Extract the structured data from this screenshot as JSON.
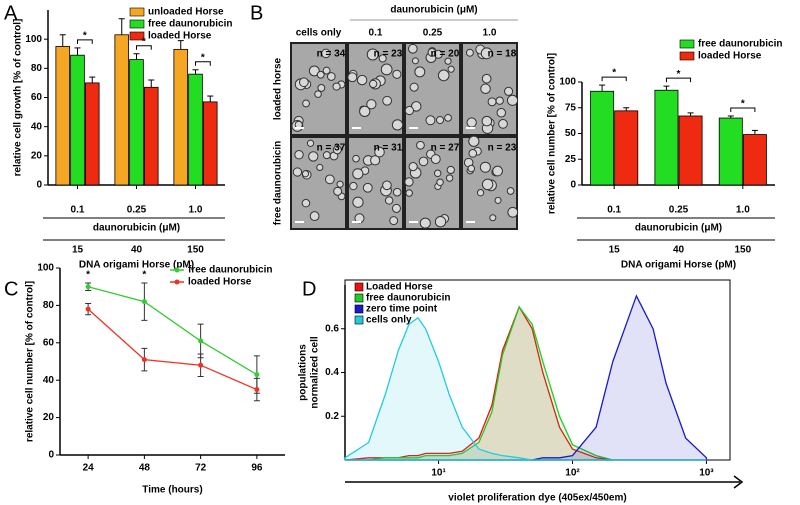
{
  "panels": [
    "A",
    "B",
    "C",
    "D"
  ],
  "micrographs": {
    "title": "daunorubicin (μM)",
    "columns": [
      "cells only",
      "0.1",
      "0.25",
      "1.0"
    ],
    "rows": [
      "loaded horse",
      "free daunorubicin"
    ],
    "counts": [
      [
        "n = 34",
        "n = 23",
        "n = 20",
        "n = 18"
      ],
      [
        "n = 37",
        "n = 31",
        "n = 27",
        "n = 23"
      ]
    ]
  },
  "chart_data": [
    {
      "type": "bar",
      "ylabel": "relative cell growth [% of control]",
      "xlabel": "daunorubicin (μM)",
      "x2label": "DNA origami Horse (pM)",
      "categories": [
        "0.1",
        "0.25",
        "1.0"
      ],
      "x2categories": [
        "15",
        "40",
        "150"
      ],
      "series": [
        {
          "name": "unloaded Horse",
          "color": "#f5a623",
          "values": [
            95,
            103,
            93
          ],
          "errors": [
            8,
            11,
            6
          ]
        },
        {
          "name": "free daunorubicin",
          "color": "#22dd22",
          "values": [
            89,
            86,
            76
          ],
          "errors": [
            5,
            4,
            3
          ]
        },
        {
          "name": "loaded Horse",
          "color": "#ee2a10",
          "values": [
            70,
            67,
            57
          ],
          "errors": [
            4,
            5,
            4
          ]
        }
      ],
      "annotations": [
        "*",
        "*",
        "*"
      ],
      "ylim": [
        0,
        120
      ],
      "yticks": [
        0,
        20,
        40,
        60,
        80,
        100
      ],
      "legend": "upper right"
    },
    {
      "type": "bar",
      "ylabel": "relative cell number [% of control]",
      "xlabel": "daunorubicin (μM)",
      "x2label": "DNA origami Horse (pM)",
      "categories": [
        "0.1",
        "0.25",
        "1.0"
      ],
      "x2categories": [
        "15",
        "40",
        "150"
      ],
      "series": [
        {
          "name": "free daunorubicin",
          "color": "#22dd22",
          "values": [
            91,
            92,
            65
          ],
          "errors": [
            6,
            4,
            2
          ]
        },
        {
          "name": "loaded Horse",
          "color": "#ee2a10",
          "values": [
            72,
            67,
            49
          ],
          "errors": [
            3,
            3,
            4
          ]
        }
      ],
      "annotations": [
        "*",
        "*",
        "*"
      ],
      "ylim": [
        0,
        100
      ],
      "yticks": [
        0,
        25,
        50,
        75,
        100
      ],
      "legend": "upper right"
    },
    {
      "type": "line",
      "ylabel": "relative cell number [% of control]",
      "xlabel": "Time (hours)",
      "x": [
        24,
        48,
        72,
        96
      ],
      "xlim": [
        12,
        108
      ],
      "xticks": [
        24,
        48,
        72,
        96
      ],
      "series": [
        {
          "name": "free daunorubicin",
          "color": "#33cc33",
          "values": [
            90,
            82,
            61,
            43
          ],
          "errors": [
            2,
            10,
            9,
            10
          ]
        },
        {
          "name": "loaded Horse",
          "color": "#ee3322",
          "values": [
            78,
            51,
            48,
            35
          ],
          "errors": [
            3,
            6,
            6,
            6
          ]
        }
      ],
      "annotations": [
        "*",
        "*"
      ],
      "ylim": [
        0,
        100
      ],
      "yticks": [
        0,
        20,
        40,
        60,
        80,
        100
      ],
      "legend": "upper right"
    },
    {
      "type": "area",
      "ylabel": [
        "normalized cell",
        "populations"
      ],
      "xlabel": "violet proliferation dye (405ex/450em)",
      "log_x": true,
      "x": [
        2,
        3,
        4,
        5,
        6,
        7,
        8,
        10,
        12,
        15,
        20,
        25,
        30,
        40,
        50,
        60,
        80,
        100,
        150,
        200,
        300,
        400,
        500,
        700,
        1000
      ],
      "xlim": [
        2,
        1500
      ],
      "xticks": [
        {
          "value": 10,
          "label": "10¹"
        },
        {
          "value": 100,
          "label": "10²"
        },
        {
          "value": 1000,
          "label": "10³"
        }
      ],
      "series": [
        {
          "name": "Loaded Horse",
          "color": "#ee1111",
          "values": [
            0,
            0.01,
            0.01,
            0.01,
            0.02,
            0.02,
            0.03,
            0.03,
            0.03,
            0.04,
            0.1,
            0.25,
            0.5,
            0.7,
            0.6,
            0.4,
            0.15,
            0.05,
            0.01,
            0,
            0,
            0,
            0,
            0,
            0
          ]
        },
        {
          "name": "free daunorubicin",
          "color": "#22cc22",
          "values": [
            0,
            0,
            0.01,
            0.01,
            0.01,
            0.01,
            0.02,
            0.02,
            0.02,
            0.03,
            0.08,
            0.22,
            0.48,
            0.7,
            0.62,
            0.45,
            0.2,
            0.07,
            0.02,
            0,
            0,
            0,
            0,
            0,
            0
          ]
        },
        {
          "name": "zero time point",
          "color": "#1a1acc",
          "values": [
            0,
            0,
            0,
            0,
            0,
            0,
            0,
            0,
            0,
            0,
            0,
            0,
            0,
            0,
            0,
            0.01,
            0.01,
            0.02,
            0.15,
            0.45,
            0.75,
            0.6,
            0.35,
            0.1,
            0.01
          ]
        },
        {
          "name": "cells only",
          "color": "#22ccdd",
          "values": [
            0.01,
            0.08,
            0.3,
            0.5,
            0.62,
            0.65,
            0.6,
            0.45,
            0.3,
            0.15,
            0.05,
            0.03,
            0.02,
            0.01,
            0,
            0,
            0,
            0,
            0,
            0,
            0,
            0,
            0,
            0,
            0
          ]
        }
      ],
      "ylim": [
        0,
        0.8
      ],
      "yticks": [
        0.2,
        0.4,
        0.6
      ],
      "legend": "upper left"
    }
  ]
}
